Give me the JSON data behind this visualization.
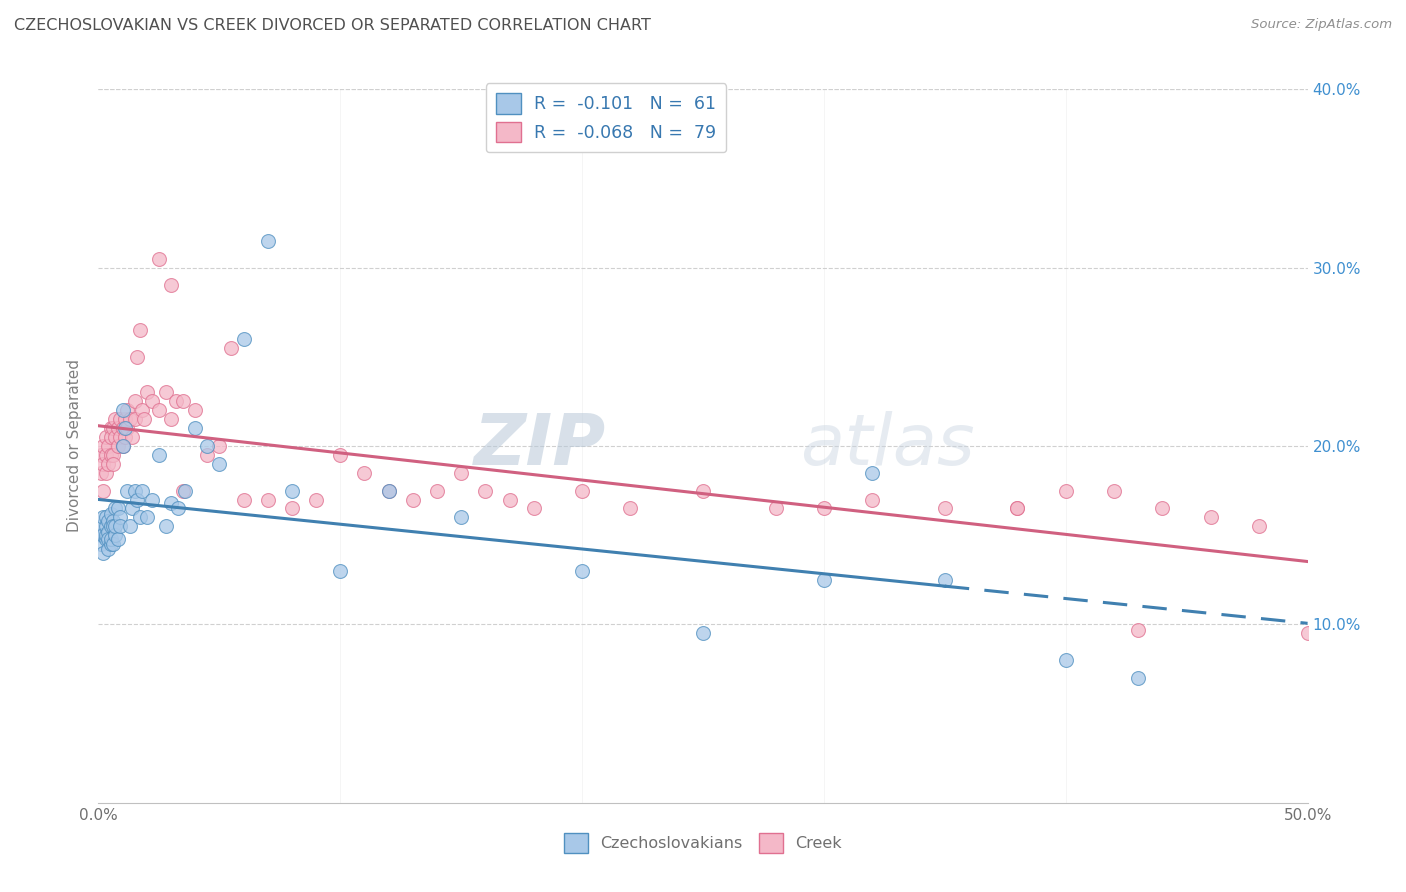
{
  "title": "CZECHOSLOVAKIAN VS CREEK DIVORCED OR SEPARATED CORRELATION CHART",
  "source": "Source: ZipAtlas.com",
  "ylabel": "Divorced or Separated",
  "xlim": [
    0,
    0.5
  ],
  "ylim": [
    0,
    0.4
  ],
  "xticks": [
    0.0,
    0.1,
    0.2,
    0.3,
    0.4,
    0.5
  ],
  "yticks": [
    0.0,
    0.1,
    0.2,
    0.3,
    0.4
  ],
  "xtick_labels_show": [
    "0.0%",
    "",
    "",
    "",
    "",
    "50.0%"
  ],
  "ytick_labels_right": [
    "",
    "10.0%",
    "20.0%",
    "30.0%",
    "40.0%"
  ],
  "blue_color": "#a8c8e8",
  "pink_color": "#f4b8c8",
  "blue_edge_color": "#5090c0",
  "pink_edge_color": "#e07090",
  "blue_line_color": "#4080b0",
  "pink_line_color": "#d06080",
  "background_color": "#ffffff",
  "grid_color": "#d0d0d0",
  "title_color": "#505050",
  "blue_R": -0.101,
  "blue_N": 61,
  "pink_R": -0.068,
  "pink_N": 79,
  "czech_x": [
    0.001,
    0.001,
    0.001,
    0.002,
    0.002,
    0.002,
    0.003,
    0.003,
    0.003,
    0.003,
    0.004,
    0.004,
    0.004,
    0.004,
    0.005,
    0.005,
    0.005,
    0.005,
    0.006,
    0.006,
    0.006,
    0.007,
    0.007,
    0.007,
    0.008,
    0.008,
    0.009,
    0.009,
    0.01,
    0.01,
    0.011,
    0.012,
    0.013,
    0.014,
    0.015,
    0.016,
    0.017,
    0.018,
    0.02,
    0.022,
    0.025,
    0.028,
    0.03,
    0.033,
    0.036,
    0.04,
    0.045,
    0.05,
    0.06,
    0.07,
    0.08,
    0.1,
    0.12,
    0.15,
    0.2,
    0.25,
    0.3,
    0.32,
    0.35,
    0.4,
    0.43
  ],
  "czech_y": [
    0.15,
    0.145,
    0.155,
    0.15,
    0.14,
    0.16,
    0.148,
    0.155,
    0.15,
    0.16,
    0.142,
    0.152,
    0.148,
    0.158,
    0.145,
    0.155,
    0.148,
    0.162,
    0.145,
    0.158,
    0.155,
    0.15,
    0.165,
    0.155,
    0.148,
    0.165,
    0.16,
    0.155,
    0.22,
    0.2,
    0.21,
    0.175,
    0.155,
    0.165,
    0.175,
    0.17,
    0.16,
    0.175,
    0.16,
    0.17,
    0.195,
    0.155,
    0.168,
    0.165,
    0.175,
    0.21,
    0.2,
    0.19,
    0.26,
    0.315,
    0.175,
    0.13,
    0.175,
    0.16,
    0.13,
    0.095,
    0.125,
    0.185,
    0.125,
    0.08,
    0.07
  ],
  "creek_x": [
    0.001,
    0.001,
    0.002,
    0.002,
    0.002,
    0.003,
    0.003,
    0.003,
    0.004,
    0.004,
    0.005,
    0.005,
    0.005,
    0.006,
    0.006,
    0.006,
    0.007,
    0.007,
    0.008,
    0.008,
    0.009,
    0.009,
    0.01,
    0.01,
    0.011,
    0.011,
    0.012,
    0.012,
    0.013,
    0.014,
    0.015,
    0.015,
    0.016,
    0.017,
    0.018,
    0.019,
    0.02,
    0.022,
    0.025,
    0.028,
    0.03,
    0.032,
    0.035,
    0.04,
    0.045,
    0.05,
    0.055,
    0.06,
    0.07,
    0.08,
    0.09,
    0.1,
    0.11,
    0.12,
    0.13,
    0.14,
    0.15,
    0.16,
    0.17,
    0.18,
    0.2,
    0.22,
    0.25,
    0.28,
    0.3,
    0.32,
    0.35,
    0.38,
    0.4,
    0.42,
    0.44,
    0.46,
    0.48,
    0.5,
    0.025,
    0.03,
    0.035,
    0.38,
    0.43
  ],
  "creek_y": [
    0.195,
    0.185,
    0.19,
    0.2,
    0.175,
    0.185,
    0.205,
    0.195,
    0.19,
    0.2,
    0.21,
    0.195,
    0.205,
    0.195,
    0.21,
    0.19,
    0.205,
    0.215,
    0.2,
    0.21,
    0.215,
    0.205,
    0.21,
    0.2,
    0.215,
    0.205,
    0.22,
    0.21,
    0.215,
    0.205,
    0.225,
    0.215,
    0.25,
    0.265,
    0.22,
    0.215,
    0.23,
    0.225,
    0.22,
    0.23,
    0.215,
    0.225,
    0.225,
    0.22,
    0.195,
    0.2,
    0.255,
    0.17,
    0.17,
    0.165,
    0.17,
    0.195,
    0.185,
    0.175,
    0.17,
    0.175,
    0.185,
    0.175,
    0.17,
    0.165,
    0.175,
    0.165,
    0.175,
    0.165,
    0.165,
    0.17,
    0.165,
    0.165,
    0.175,
    0.175,
    0.165,
    0.16,
    0.155,
    0.095,
    0.305,
    0.29,
    0.175,
    0.165,
    0.097
  ]
}
